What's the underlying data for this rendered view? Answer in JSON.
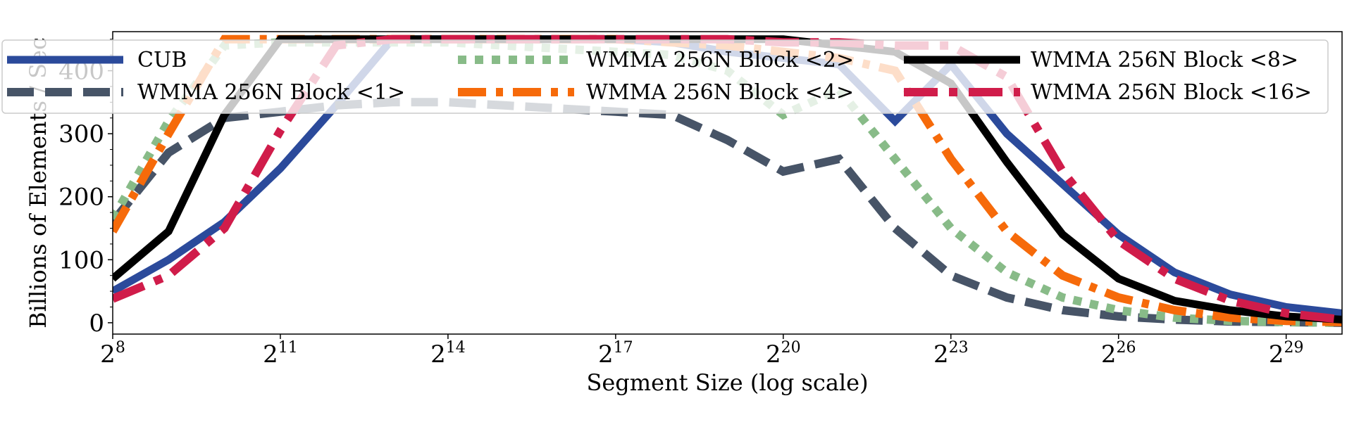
{
  "chart_data": {
    "type": "line",
    "title": "",
    "xlabel": "Segment Size (log scale)",
    "ylabel": "Billions of Elements / Sec",
    "x_scale": "log2",
    "x": [
      8,
      9,
      10,
      11,
      12,
      13,
      14,
      15,
      16,
      17,
      18,
      19,
      20,
      21,
      22,
      23,
      24,
      25,
      26,
      27,
      28,
      29,
      30
    ],
    "xlim": [
      8,
      30
    ],
    "ylim": [
      -18,
      462
    ],
    "x_ticks": [
      {
        "exp": 8,
        "base": "2",
        "sup": "8"
      },
      {
        "exp": 11,
        "base": "2",
        "sup": "11"
      },
      {
        "exp": 14,
        "base": "2",
        "sup": "14"
      },
      {
        "exp": 17,
        "base": "2",
        "sup": "17"
      },
      {
        "exp": 20,
        "base": "2",
        "sup": "20"
      },
      {
        "exp": 23,
        "base": "2",
        "sup": "23"
      },
      {
        "exp": 26,
        "base": "2",
        "sup": "26"
      },
      {
        "exp": 29,
        "base": "2",
        "sup": "29"
      }
    ],
    "y_ticks": [
      {
        "value": 0,
        "label": "0"
      },
      {
        "value": 100,
        "label": "100"
      },
      {
        "value": 200,
        "label": "200"
      },
      {
        "value": 300,
        "label": "300"
      },
      {
        "value": 400,
        "label": "400"
      }
    ],
    "grid": false,
    "legend_position": "top",
    "series": [
      {
        "name": "CUB",
        "color": "#2b4a9b",
        "dash": "solid",
        "values": [
          50,
          100,
          160,
          245,
          345,
          450,
          450,
          450,
          450,
          450,
          445,
          430,
          420,
          410,
          320,
          410,
          300,
          220,
          140,
          80,
          45,
          25,
          15
        ]
      },
      {
        "name": "WMMA 256N Block <1>",
        "color": "#475467",
        "dash": "dash",
        "values": [
          160,
          270,
          325,
          335,
          345,
          350,
          350,
          345,
          340,
          335,
          330,
          290,
          240,
          260,
          150,
          75,
          40,
          20,
          10,
          5,
          2,
          1,
          0
        ]
      },
      {
        "name": "WMMA 256N Block <2>",
        "color": "#88bb88",
        "dash": "dot",
        "values": [
          165,
          320,
          440,
          445,
          445,
          445,
          445,
          440,
          435,
          430,
          425,
          400,
          330,
          370,
          260,
          150,
          80,
          40,
          20,
          8,
          3,
          1,
          0
        ]
      },
      {
        "name": "WMMA 256N Block <4>",
        "color": "#f66a0a",
        "dash": "dashdot",
        "values": [
          145,
          300,
          450,
          450,
          450,
          450,
          450,
          450,
          450,
          450,
          445,
          440,
          430,
          420,
          400,
          260,
          145,
          75,
          40,
          20,
          8,
          3,
          1
        ]
      },
      {
        "name": "WMMA 256N Block <8>",
        "color": "#000000",
        "dash": "solid",
        "values": [
          70,
          145,
          330,
          450,
          450,
          450,
          450,
          450,
          450,
          450,
          450,
          450,
          450,
          440,
          430,
          380,
          255,
          140,
          70,
          35,
          20,
          10,
          5
        ]
      },
      {
        "name": "WMMA 256N Block <16>",
        "color": "#d01c4a",
        "dash": "longdashdot",
        "values": [
          38,
          75,
          150,
          305,
          440,
          450,
          450,
          450,
          450,
          450,
          450,
          450,
          445,
          445,
          440,
          440,
          390,
          240,
          130,
          70,
          35,
          15,
          5
        ]
      }
    ]
  }
}
